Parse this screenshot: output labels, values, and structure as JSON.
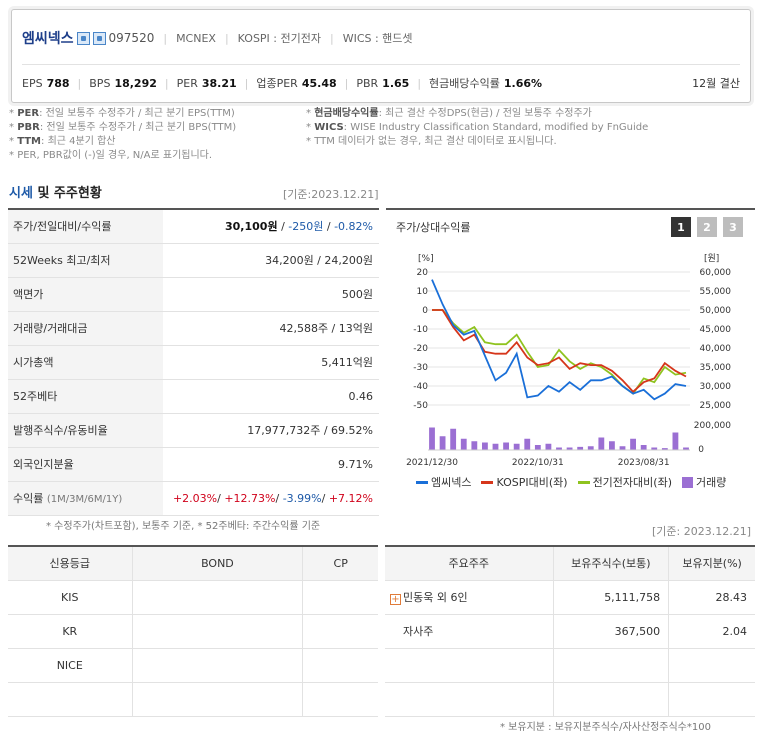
{
  "company": {
    "name": "엠씨넥스",
    "code": "097520",
    "english": "MCNEX",
    "market": "KOSPI : 전기전자",
    "wics": "WICS : 핸드셋"
  },
  "metrics": [
    {
      "label": "EPS",
      "value": "788"
    },
    {
      "label": "BPS",
      "value": "18,292"
    },
    {
      "label": "PER",
      "value": "38.21"
    },
    {
      "label": "업종PER",
      "value": "45.48"
    },
    {
      "label": "PBR",
      "value": "1.65"
    },
    {
      "label": "현금배당수익률",
      "value": "1.66%"
    }
  ],
  "settlement": "12월 결산",
  "notes_left": [
    {
      "label": "PER",
      "text": ": 전일 보통주 수정주가 / 최근 분기 EPS(TTM)"
    },
    {
      "label": "PBR",
      "text": ": 전일 보통주 수정주가 / 최근 분기 BPS(TTM)"
    },
    {
      "label": "TTM",
      "text": ": 최근 4분기 합산"
    },
    {
      "label": "",
      "text": "PER, PBR값이 (-)일 경우, N/A로 표기됩니다."
    }
  ],
  "notes_right": [
    {
      "label": "현금배당수익률",
      "text": ": 최근 결산 수정DPS(현금) / 전일 보통주 수정주가"
    },
    {
      "label": "WICS",
      "text": ": WISE Industry Classification Standard, modified by FnGuide"
    },
    {
      "label": "",
      "text": "TTM 데이터가 없는 경우, 최근 결산 데이터로 표시됩니다."
    }
  ],
  "section": {
    "title_blue": "시세",
    "title_rest": " 및 주주현황",
    "date": "[기준:2023.12.21]"
  },
  "price": {
    "row1": {
      "label": "주가/전일대비/수익률",
      "price": "30,100원",
      "sep1": " / ",
      "change": "-250원",
      "sep2": " / ",
      "rate": "-0.82%"
    },
    "rows": [
      {
        "label": "52Weeks 최고/최저",
        "value": "34,200원 / 24,200원"
      },
      {
        "label": "액면가",
        "value": "500원"
      },
      {
        "label": "거래량/거래대금",
        "value": "42,588주 / 13억원"
      },
      {
        "label": "시가총액",
        "value": "5,411억원"
      },
      {
        "label": "52주베타",
        "value": "0.46"
      },
      {
        "label": "발행주식수/유동비율",
        "value": "17,977,732주 / 69.52%"
      },
      {
        "label": "외국인지분율",
        "value": "9.71%"
      }
    ],
    "returns": {
      "label": "수익률",
      "sub": "(1M/3M/6M/1Y)",
      "r1": "+2.03%",
      "r2": "+12.73%",
      "r3": "-3.99%",
      "r4": "+7.12%",
      "sep": "/ "
    },
    "footnote": "* 수정주가(차트포함), 보통주 기준, * 52주베타: 주간수익률 기준"
  },
  "chart": {
    "title": "주가/상대수익률",
    "tabs": [
      "1",
      "2",
      "3"
    ],
    "unit_left": "[%]",
    "unit_right": "[원]",
    "left_ticks": [
      "20",
      "10",
      "0",
      "-10",
      "-20",
      "-30",
      "-40",
      "-50"
    ],
    "right_ticks": [
      "60,000",
      "55,000",
      "50,000",
      "45,000",
      "40,000",
      "35,000",
      "30,000",
      "25,000"
    ],
    "vol_ticks": [
      "200,000",
      "0"
    ],
    "x_ticks": [
      "2021/12/30",
      "2022/10/31",
      "2023/08/31"
    ],
    "legend": [
      "엠씨넥스",
      "KOSPI대비(좌)",
      "전기전자대비(좌)",
      "거래량"
    ],
    "colors": {
      "company": "#1a6fd8",
      "kospi": "#d6361b",
      "sector": "#8fc31f",
      "volume": "#9b6fd3"
    }
  },
  "chart_data": {
    "type": "line",
    "x": [
      "2021/12",
      "2022/01",
      "2022/02",
      "2022/03",
      "2022/04",
      "2022/05",
      "2022/06",
      "2022/07",
      "2022/08",
      "2022/09",
      "2022/10",
      "2022/11",
      "2022/12",
      "2023/01",
      "2023/02",
      "2023/03",
      "2023/04",
      "2023/05",
      "2023/06",
      "2023/07",
      "2023/08",
      "2023/09",
      "2023/10",
      "2023/11",
      "2023/12"
    ],
    "series": [
      {
        "name": "엠씨넥스",
        "values": [
          16,
          3,
          -8,
          -13,
          -11,
          -24,
          -37,
          -33,
          -23,
          -46,
          -45,
          -40,
          -43,
          -38,
          -42,
          -37,
          -37,
          -35,
          -40,
          -44,
          -42,
          -47,
          -44,
          -39,
          -40
        ]
      },
      {
        "name": "KOSPI대비(좌)",
        "values": [
          0,
          0,
          -9,
          -16,
          -13,
          -22,
          -23,
          -23,
          -17,
          -25,
          -29,
          -28,
          -25,
          -31,
          -28,
          -29,
          -29,
          -32,
          -37,
          -43,
          -38,
          -36,
          -28,
          -32,
          -35
        ]
      },
      {
        "name": "전기전자대비(좌)",
        "values": [
          0,
          0,
          -7,
          -12,
          -9,
          -17,
          -18,
          -18,
          -13,
          -22,
          -30,
          -29,
          -21,
          -27,
          -31,
          -28,
          -30,
          -34,
          -40,
          -44,
          -36,
          -38,
          -30,
          -34,
          -33
        ]
      },
      {
        "name": "거래량",
        "values": [
          180000,
          110000,
          170000,
          90000,
          70000,
          60000,
          50000,
          60000,
          50000,
          90000,
          40000,
          50000,
          20000,
          20000,
          25000,
          30000,
          100000,
          70000,
          30000,
          90000,
          40000,
          20000,
          15000,
          140000,
          20000
        ]
      }
    ],
    "y_left": [
      -50,
      20
    ],
    "y_right": [
      25000,
      60000
    ]
  },
  "credit": {
    "headers": [
      "신용등급",
      "BOND",
      "CP"
    ],
    "rows": [
      "KIS",
      "KR",
      "NICE",
      ""
    ]
  },
  "holders": {
    "date": "[기준: 2023.12.21]",
    "headers": [
      "주요주주",
      "보유주식수(보통)",
      "보유지분(%)"
    ],
    "rows": [
      {
        "name": "민동욱 외 6인",
        "shares": "5,111,758",
        "pct": "28.43"
      },
      {
        "name": "자사주",
        "shares": "367,500",
        "pct": "2.04"
      },
      {
        "name": "",
        "shares": "",
        "pct": ""
      },
      {
        "name": "",
        "shares": "",
        "pct": ""
      }
    ],
    "footnote": "* 보유지분 : 보유지분주식수/자사산정주식수*100"
  }
}
